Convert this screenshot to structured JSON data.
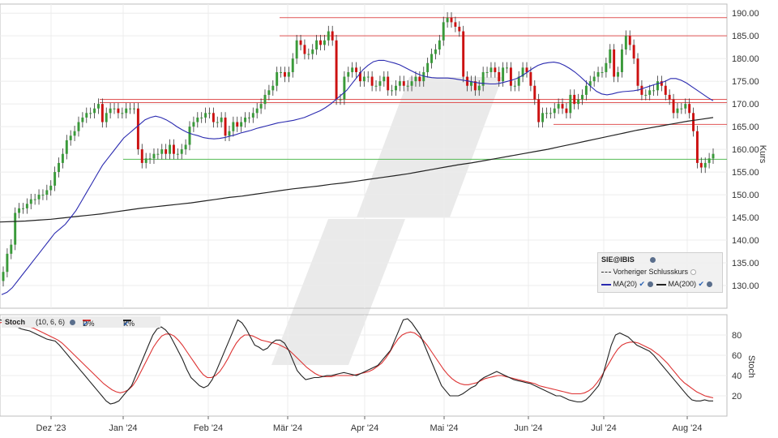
{
  "chart_data": [
    {
      "type": "candlestick",
      "symbol": "SIE@IBIS",
      "ylabel": "Kurs",
      "ylim": [
        125,
        192
      ],
      "yticks": [
        "130.00",
        "135.00",
        "140.00",
        "145.00",
        "150.00",
        "155.00",
        "160.00",
        "165.00",
        "170.00",
        "175.00",
        "180.00",
        "185.00",
        "190.00"
      ],
      "xticks": [
        "Dez '23",
        "Jan '24",
        "Feb '24",
        "Mär '24",
        "Apr '24",
        "Mai '24",
        "Jun '24",
        "Jul '24",
        "Aug '24"
      ],
      "legend": {
        "title": "SIE@IBIS",
        "items": [
          "Vorheriger Schlusskurs",
          "MA(20)",
          "MA(200)"
        ]
      },
      "colors": {
        "up": "#3a9a3a",
        "down": "#cc1111",
        "ma20": "#2b2bb0",
        "ma200": "#222222",
        "resistance": "#e05555",
        "support": "#55bb55"
      },
      "horizontal_levels": [
        {
          "value": 189,
          "color": "red"
        },
        {
          "value": 185,
          "color": "red"
        },
        {
          "value": 171,
          "color": "red"
        },
        {
          "value": 170.3,
          "color": "red"
        },
        {
          "value": 165.5,
          "color": "red"
        },
        {
          "value": 157.8,
          "color": "green"
        }
      ],
      "close": [
        133,
        137,
        139,
        146,
        147,
        147,
        148,
        149,
        149,
        150,
        150,
        151,
        152,
        155,
        157,
        159,
        162,
        163,
        164,
        166,
        167,
        168,
        168,
        169,
        170,
        166,
        168,
        169,
        169,
        168,
        168,
        169,
        169,
        169,
        160,
        157,
        158,
        158,
        159,
        159,
        160,
        159,
        161,
        159,
        159,
        160,
        161,
        165,
        166,
        167,
        167,
        168,
        168,
        166,
        166,
        167,
        163,
        164,
        166,
        165,
        166,
        167,
        167,
        168,
        169,
        170,
        172,
        173,
        174,
        177,
        177,
        176,
        177,
        180,
        184,
        183,
        181,
        181,
        182,
        184,
        183,
        184,
        186,
        184,
        171,
        171,
        176,
        177,
        178,
        177,
        175,
        176,
        176,
        174,
        174,
        175,
        176,
        173,
        173,
        174,
        175,
        174,
        174,
        175,
        176,
        175,
        177,
        179,
        181,
        182,
        184,
        188,
        189,
        188,
        187,
        186,
        176,
        174,
        175,
        173,
        174,
        177,
        177,
        178,
        177,
        175,
        178,
        178,
        174,
        174,
        176,
        178,
        177,
        174,
        171,
        166,
        168,
        168,
        168,
        169,
        170,
        169,
        168,
        172,
        170,
        171,
        172,
        174,
        175,
        176,
        177,
        177,
        179,
        182,
        176,
        177,
        182,
        185,
        183,
        180,
        174,
        172,
        172,
        173,
        173,
        175,
        174,
        172,
        171,
        168,
        169,
        169,
        170,
        168,
        164,
        157,
        156,
        157,
        158,
        159
      ],
      "ma20": [
        128,
        128.5,
        129.5,
        131,
        132.5,
        134,
        135.5,
        137,
        138.5,
        140,
        141.5,
        142.5,
        143.5,
        145,
        146.5,
        148.5,
        150.5,
        152.5,
        154.5,
        156.5,
        158,
        159.5,
        161,
        162.5,
        163.5,
        164.5,
        165.5,
        166.5,
        167,
        167.3,
        167,
        166.5,
        165.8,
        165,
        164.3,
        163.7,
        163.3,
        163,
        162.6,
        162.4,
        162.3,
        162.4,
        162.6,
        162.9,
        163.2,
        163.6,
        163.9,
        164.2,
        164.6,
        164.9,
        165.2,
        165.5,
        165.8,
        166,
        166.2,
        166.4,
        166.7,
        167,
        167.5,
        168,
        168.5,
        169.2,
        170,
        171,
        172,
        173,
        174.5,
        176,
        177.5,
        178.5,
        179.3,
        179.6,
        179.6,
        179.3,
        179,
        178.6,
        178,
        177.4,
        176.8,
        176.3,
        176,
        175.8,
        175.7,
        175.7,
        175.7,
        175.6,
        175.4,
        175.2,
        175,
        174.8,
        174.6,
        174.5,
        174.4,
        174.4,
        174.6,
        174.9,
        175.2,
        175.6,
        176.2,
        177,
        177.8,
        178.5,
        178.9,
        179.1,
        179.2,
        179,
        178.5,
        177.8,
        177,
        176,
        174.9,
        173.8,
        172.8,
        172.2,
        172,
        172.2,
        172.5,
        172.7,
        172.8,
        172.9,
        173.1,
        173.5,
        173.9,
        174.3,
        174.6,
        175,
        175.6,
        175.6,
        175.2,
        174.6,
        173.8,
        173,
        172.2,
        171.4,
        170.7
      ],
      "ma200": [
        144,
        144.1,
        144.2,
        144.4,
        144.6,
        144.9,
        145.2,
        145.5,
        145.8,
        146.2,
        146.6,
        147,
        147.3,
        147.6,
        147.9,
        148.2,
        148.6,
        149,
        149.4,
        149.7,
        150.1,
        150.5,
        150.9,
        151.3,
        151.6,
        151.9,
        152.3,
        152.6,
        153,
        153.4,
        153.8,
        154.2,
        154.6,
        155.1,
        155.6,
        156.1,
        156.6,
        157,
        157.5,
        158,
        158.5,
        159,
        159.5,
        160,
        160.6,
        161.2,
        161.8,
        162.4,
        163,
        163.6,
        164.2,
        164.7,
        165.2,
        165.7,
        166.2,
        166.6,
        167
      ],
      "stoch_k": [
        95,
        94,
        92,
        90,
        88,
        86,
        85,
        84,
        82,
        80,
        78,
        76,
        75,
        74,
        70,
        65,
        60,
        55,
        50,
        45,
        40,
        35,
        30,
        25,
        20,
        15,
        12,
        13,
        15,
        20,
        25,
        30,
        40,
        50,
        60,
        70,
        80,
        86,
        88,
        85,
        80,
        72,
        64,
        56,
        46,
        38,
        34,
        30,
        28,
        30,
        36,
        45,
        55,
        65,
        75,
        85,
        95,
        92,
        86,
        78,
        70,
        68,
        65,
        67,
        72,
        75,
        75,
        72,
        65,
        55,
        45,
        40,
        36,
        37,
        38,
        38,
        39,
        40,
        40,
        41,
        42,
        43,
        42,
        41,
        40,
        42,
        44,
        46,
        48,
        50,
        55,
        60,
        65,
        75,
        85,
        95,
        96,
        92,
        86,
        80,
        70,
        60,
        50,
        40,
        30,
        25,
        20,
        20,
        20,
        22,
        25,
        28,
        30,
        35,
        38,
        40,
        42,
        44,
        42,
        40,
        38,
        36,
        35,
        34,
        33,
        32,
        30,
        28,
        26,
        24,
        22,
        20,
        20,
        18,
        16,
        15,
        14,
        14,
        16,
        20,
        25,
        30,
        40,
        55,
        70,
        80,
        82,
        80,
        78,
        74,
        70,
        68,
        66,
        64,
        60,
        55,
        50,
        45,
        40,
        35,
        30,
        25,
        20,
        16,
        15,
        15,
        16,
        15,
        15
      ],
      "stoch_d": [
        92,
        93,
        93,
        92,
        91,
        90,
        89,
        88,
        87,
        85,
        83,
        81,
        79,
        77,
        75,
        72,
        68,
        64,
        60,
        56,
        52,
        48,
        44,
        40,
        36,
        32,
        29,
        26,
        24,
        23,
        24,
        26,
        30,
        36,
        44,
        52,
        60,
        68,
        74,
        79,
        81,
        81,
        79,
        75,
        70,
        64,
        58,
        52,
        46,
        41,
        38,
        38,
        40,
        44,
        50,
        57,
        65,
        72,
        77,
        80,
        80,
        79,
        77,
        75,
        74,
        73,
        72,
        71,
        69,
        67,
        64,
        60,
        56,
        52,
        48,
        45,
        42,
        40,
        39,
        39,
        39,
        40,
        40,
        40,
        40,
        40,
        41,
        42,
        43,
        44,
        46,
        49,
        52,
        57,
        63,
        70,
        76,
        80,
        82,
        83,
        82,
        79,
        75,
        70,
        64,
        58,
        52,
        46,
        41,
        37,
        34,
        32,
        31,
        31,
        32,
        33,
        35,
        37,
        38,
        39,
        40,
        40,
        39,
        38,
        37,
        36,
        35,
        34,
        33,
        32,
        30,
        29,
        28,
        27,
        26,
        25,
        24,
        23,
        22,
        22,
        22,
        23,
        25,
        28,
        33,
        39,
        46,
        53,
        60,
        66,
        70,
        72,
        73,
        73,
        72,
        70,
        68,
        66,
        63,
        60,
        56,
        52,
        47,
        42,
        37,
        33,
        30,
        27,
        24,
        22,
        20,
        19,
        18
      ]
    }
  ],
  "stoch": {
    "label": "Stoch",
    "params": "(10, 6, 6)",
    "d_label": "D%",
    "k_label": "K%",
    "ylabel": "Stoch",
    "yticks": [
      "20",
      "40",
      "60",
      "80"
    ],
    "ylim": [
      0,
      100
    ]
  }
}
